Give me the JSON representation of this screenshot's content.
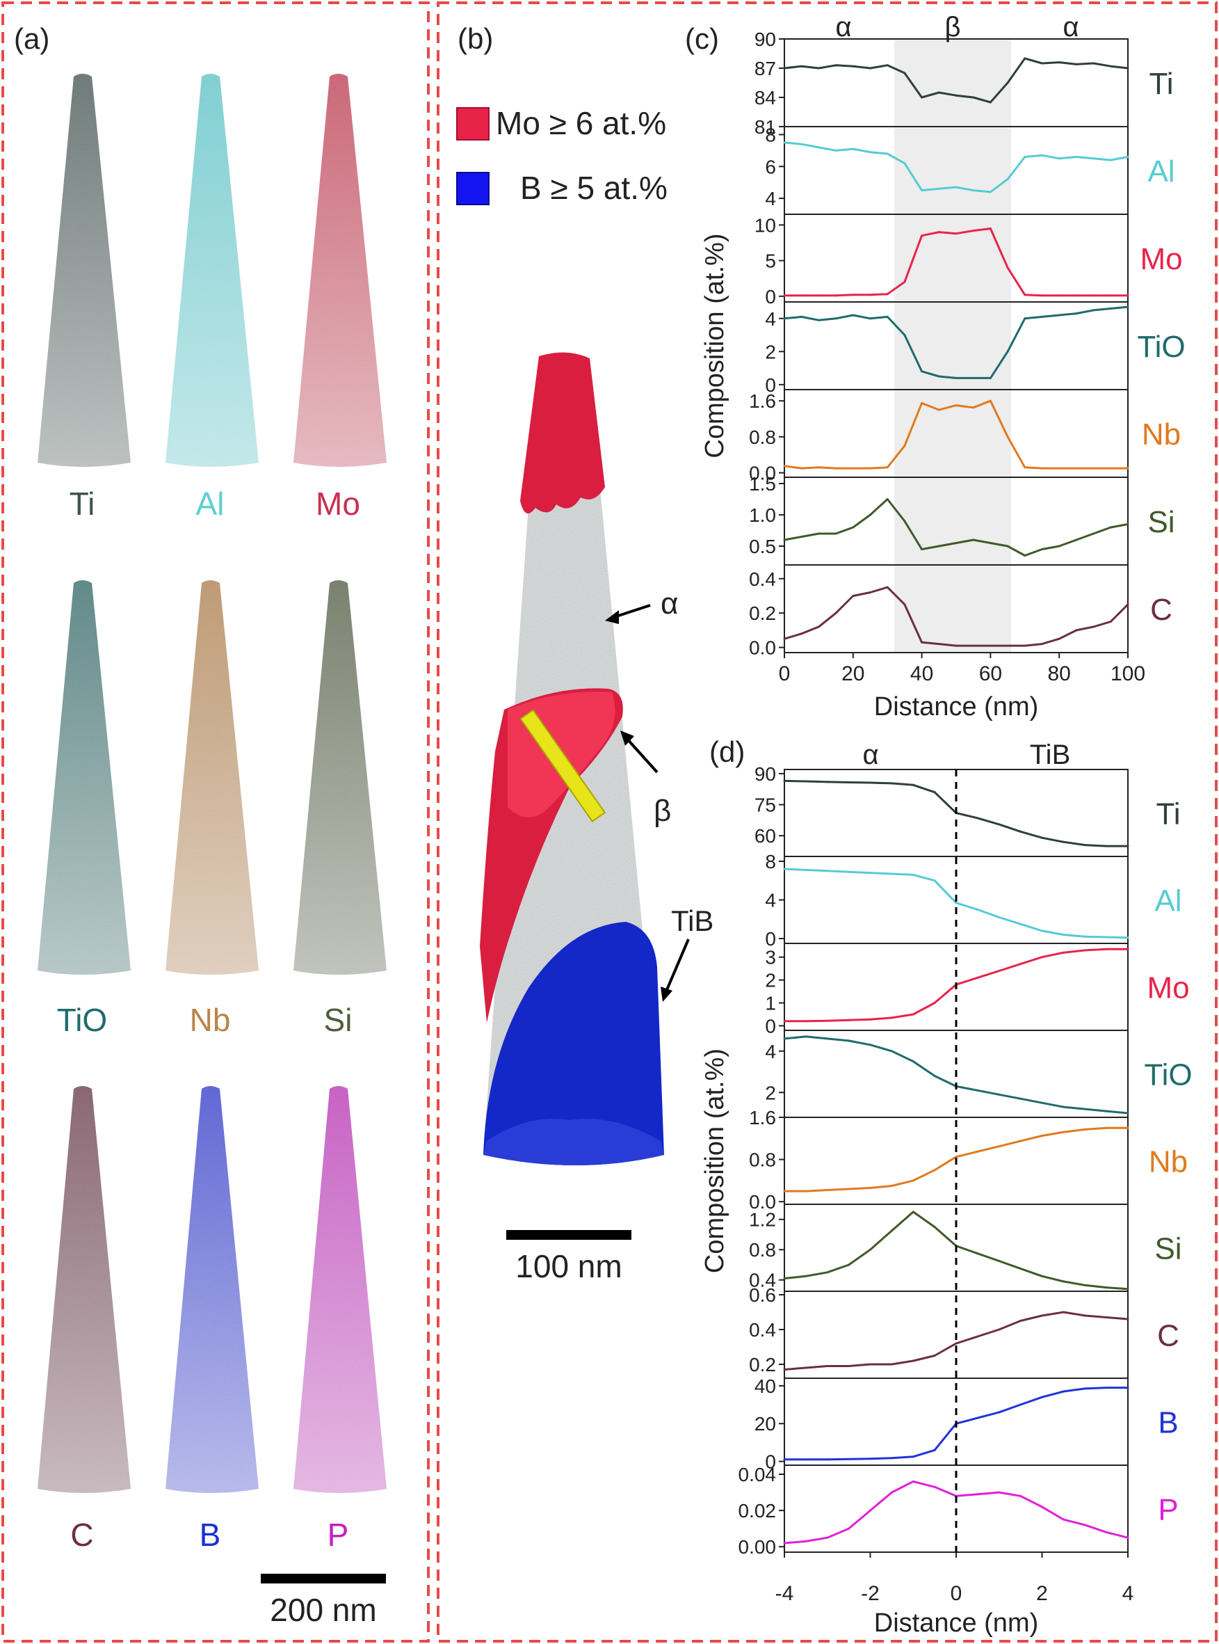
{
  "panels": {
    "a": {
      "label": "(a)",
      "elements": [
        {
          "name": "Ti",
          "color": "#3d5450"
        },
        {
          "name": "Al",
          "color": "#5ccfd4"
        },
        {
          "name": "Mo",
          "color": "#c9304f"
        },
        {
          "name": "TiO",
          "color": "#1f6b6b"
        },
        {
          "name": "Nb",
          "color": "#b8854a"
        },
        {
          "name": "Si",
          "color": "#505d3c"
        },
        {
          "name": "C",
          "color": "#6b2e44"
        },
        {
          "name": "B",
          "color": "#1a2fd6"
        },
        {
          "name": "P",
          "color": "#c420c0"
        }
      ],
      "scale_bar": "200 nm"
    },
    "b": {
      "label": "(b)",
      "legend": [
        {
          "text": "Mo ≥ 6 at.%",
          "color": "#e8234a"
        },
        {
          "text": "B ≥ 5 at.%",
          "color": "#1414f0"
        }
      ],
      "annotations": {
        "alpha": "α",
        "beta": "β",
        "tib": "TiB"
      },
      "scale_bar": "100 nm"
    },
    "c": {
      "label": "(c)",
      "phase_labels": [
        "α",
        "β",
        "α"
      ],
      "ylabel": "Composition (at.%)",
      "xlabel": "Distance (nm)"
    },
    "d": {
      "label": "(d)",
      "phase_labels": [
        "α",
        "TiB"
      ],
      "ylabel": "Composition (at.%)",
      "xlabel": "Distance (nm)"
    }
  },
  "chart_data": [
    {
      "type": "line",
      "panel": "c",
      "x": [
        0,
        5,
        10,
        15,
        20,
        25,
        30,
        35,
        40,
        45,
        50,
        55,
        60,
        65,
        70,
        75,
        80,
        85,
        90,
        95,
        100
      ],
      "xlim": [
        0,
        100
      ],
      "xticks": [
        "0",
        "20",
        "40",
        "60",
        "80",
        "100"
      ],
      "xlabel": "Distance (nm)",
      "ylabel": "Composition (at.%)",
      "shaded_region": [
        32,
        66
      ],
      "series": [
        {
          "name": "Ti",
          "color": "#2e403c",
          "ylim": [
            81,
            90
          ],
          "yticks": [
            "81",
            "84",
            "87",
            "90"
          ],
          "values": [
            87.0,
            87.2,
            87.0,
            87.3,
            87.2,
            87.0,
            87.3,
            86.5,
            84.0,
            84.5,
            84.2,
            84.0,
            83.5,
            85.5,
            88.0,
            87.5,
            87.6,
            87.4,
            87.5,
            87.2,
            87.0
          ]
        },
        {
          "name": "Al",
          "color": "#55ccd3",
          "ylim": [
            3,
            8.5
          ],
          "yticks": [
            "4",
            "6",
            "8"
          ],
          "values": [
            7.5,
            7.4,
            7.2,
            7.0,
            7.1,
            6.9,
            6.8,
            6.2,
            4.5,
            4.6,
            4.7,
            4.5,
            4.4,
            5.2,
            6.6,
            6.7,
            6.5,
            6.6,
            6.5,
            6.4,
            6.6
          ]
        },
        {
          "name": "Mo",
          "color": "#e8234a",
          "ylim": [
            -0.8,
            11.5
          ],
          "yticks": [
            "0",
            "5",
            "10"
          ],
          "values": [
            0.1,
            0.1,
            0.1,
            0.1,
            0.2,
            0.2,
            0.3,
            2.0,
            8.5,
            9.0,
            8.8,
            9.2,
            9.5,
            4.0,
            0.2,
            0.1,
            0.1,
            0.1,
            0.1,
            0.1,
            0.1
          ]
        },
        {
          "name": "TiO",
          "color": "#1f6b6b",
          "ylim": [
            -0.3,
            5
          ],
          "yticks": [
            "0",
            "2",
            "4"
          ],
          "values": [
            4.0,
            4.1,
            3.9,
            4.0,
            4.2,
            4.0,
            4.1,
            3.0,
            0.8,
            0.5,
            0.4,
            0.4,
            0.4,
            2.0,
            4.0,
            4.1,
            4.2,
            4.3,
            4.5,
            4.6,
            4.7
          ]
        },
        {
          "name": "Nb",
          "color": "#e07a1e",
          "ylim": [
            -0.1,
            1.85
          ],
          "yticks": [
            "0.0",
            "0.8",
            "1.6"
          ],
          "values": [
            0.15,
            0.1,
            0.12,
            0.1,
            0.1,
            0.1,
            0.12,
            0.6,
            1.55,
            1.4,
            1.5,
            1.45,
            1.6,
            0.8,
            0.12,
            0.1,
            0.1,
            0.1,
            0.1,
            0.1,
            0.1
          ]
        },
        {
          "name": "Si",
          "color": "#3f5a2a",
          "ylim": [
            0.2,
            1.6
          ],
          "yticks": [
            "0.5",
            "1.0",
            "1.5"
          ],
          "values": [
            0.6,
            0.65,
            0.7,
            0.7,
            0.8,
            1.0,
            1.25,
            0.9,
            0.45,
            0.5,
            0.55,
            0.6,
            0.55,
            0.5,
            0.35,
            0.45,
            0.5,
            0.6,
            0.7,
            0.8,
            0.85
          ]
        },
        {
          "name": "C",
          "color": "#6b2e44",
          "ylim": [
            -0.03,
            0.48
          ],
          "yticks": [
            "0.0",
            "0.2",
            "0.4"
          ],
          "values": [
            0.05,
            0.08,
            0.12,
            0.2,
            0.3,
            0.32,
            0.35,
            0.25,
            0.03,
            0.02,
            0.01,
            0.01,
            0.01,
            0.01,
            0.01,
            0.02,
            0.05,
            0.1,
            0.12,
            0.15,
            0.25
          ]
        }
      ]
    },
    {
      "type": "line",
      "panel": "d",
      "x": [
        -4,
        -3.5,
        -3,
        -2.5,
        -2,
        -1.5,
        -1,
        -0.5,
        0,
        0.5,
        1,
        1.5,
        2,
        2.5,
        3,
        3.5,
        4
      ],
      "xlim": [
        -4,
        4
      ],
      "xticks": [
        "-4",
        "-2",
        "0",
        "2",
        "4"
      ],
      "xlabel": "Distance (nm)",
      "ylabel": "Composition (at.%)",
      "interface_x": 0,
      "series": [
        {
          "name": "Ti",
          "color": "#2e403c",
          "ylim": [
            50,
            92
          ],
          "yticks": [
            "60",
            "75",
            "90"
          ],
          "values": [
            86.5,
            86.3,
            86.0,
            85.8,
            85.6,
            85.3,
            84.5,
            81.0,
            71.0,
            68.5,
            65.5,
            62.0,
            59.0,
            57.0,
            55.5,
            55.0,
            55.0
          ]
        },
        {
          "name": "Al",
          "color": "#55ccd3",
          "ylim": [
            -0.5,
            8.5
          ],
          "yticks": [
            "0",
            "4",
            "8"
          ],
          "values": [
            7.2,
            7.1,
            7.0,
            6.9,
            6.8,
            6.7,
            6.6,
            6.0,
            3.7,
            3.0,
            2.2,
            1.5,
            0.8,
            0.4,
            0.2,
            0.15,
            0.1
          ]
        },
        {
          "name": "Mo",
          "color": "#e8234a",
          "ylim": [
            -0.2,
            3.6
          ],
          "yticks": [
            "0",
            "1",
            "2",
            "3"
          ],
          "values": [
            0.2,
            0.2,
            0.22,
            0.25,
            0.28,
            0.35,
            0.5,
            1.0,
            1.8,
            2.1,
            2.4,
            2.7,
            3.0,
            3.2,
            3.3,
            3.35,
            3.35
          ]
        },
        {
          "name": "TiO",
          "color": "#1f6b6b",
          "ylim": [
            0.8,
            5.0
          ],
          "yticks": [
            "2",
            "4"
          ],
          "values": [
            4.6,
            4.7,
            4.6,
            4.5,
            4.3,
            4.0,
            3.5,
            2.8,
            2.3,
            2.1,
            1.9,
            1.7,
            1.5,
            1.3,
            1.2,
            1.1,
            1.0
          ]
        },
        {
          "name": "Nb",
          "color": "#e07a1e",
          "ylim": [
            -0.05,
            1.6
          ],
          "yticks": [
            "0.0",
            "0.8",
            "1.6"
          ],
          "values": [
            0.2,
            0.2,
            0.22,
            0.24,
            0.26,
            0.3,
            0.4,
            0.6,
            0.85,
            0.95,
            1.05,
            1.15,
            1.25,
            1.32,
            1.37,
            1.4,
            1.4
          ]
        },
        {
          "name": "Si",
          "color": "#3f5a2a",
          "ylim": [
            0.25,
            1.4
          ],
          "yticks": [
            "0.4",
            "0.8",
            "1.2"
          ],
          "values": [
            0.42,
            0.45,
            0.5,
            0.6,
            0.8,
            1.05,
            1.3,
            1.1,
            0.85,
            0.75,
            0.65,
            0.55,
            0.45,
            0.38,
            0.33,
            0.3,
            0.28
          ]
        },
        {
          "name": "C",
          "color": "#6b2e44",
          "ylim": [
            0.12,
            0.62
          ],
          "yticks": [
            "0.2",
            "0.4",
            "0.6"
          ],
          "values": [
            0.17,
            0.18,
            0.19,
            0.19,
            0.2,
            0.2,
            0.22,
            0.25,
            0.32,
            0.36,
            0.4,
            0.45,
            0.48,
            0.5,
            0.48,
            0.47,
            0.46
          ]
        },
        {
          "name": "B",
          "color": "#1f33d9",
          "ylim": [
            -2,
            44
          ],
          "yticks": [
            "0",
            "20",
            "40"
          ],
          "values": [
            1,
            1,
            1,
            1.2,
            1.4,
            1.8,
            2.5,
            6,
            20,
            23,
            26,
            30,
            34,
            37,
            38.5,
            39,
            39
          ]
        },
        {
          "name": "P",
          "color": "#e020d8",
          "ylim": [
            -0.003,
            0.045
          ],
          "yticks": [
            "0.00",
            "0.02",
            "0.04"
          ],
          "values": [
            0.002,
            0.003,
            0.005,
            0.01,
            0.02,
            0.03,
            0.036,
            0.033,
            0.028,
            0.029,
            0.03,
            0.028,
            0.022,
            0.015,
            0.012,
            0.008,
            0.005
          ]
        }
      ]
    }
  ]
}
